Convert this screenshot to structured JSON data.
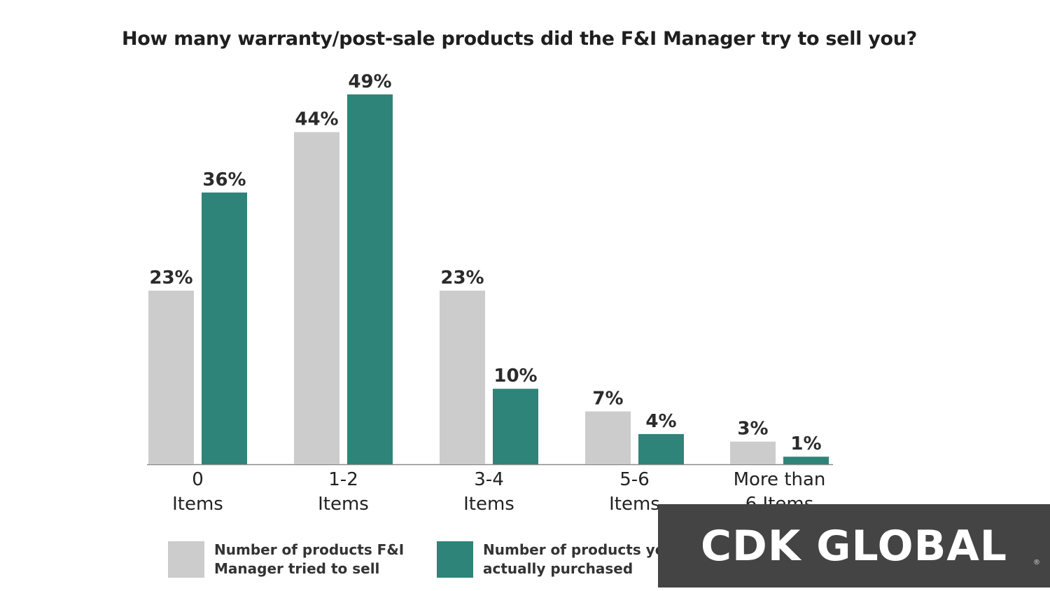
{
  "title": "How many warranty/post-sale products did the F&I Manager try to sell you?",
  "chart_data": {
    "type": "bar",
    "title": "How many warranty/post-sale products did the F&I Manager try to sell you?",
    "categories": [
      "0\nItems",
      "1-2\nItems",
      "3-4\nItems",
      "5-6\nItems",
      "More than\n6 Items"
    ],
    "series": [
      {
        "name": "Number of products F&I Manager tried to sell",
        "values": [
          23,
          44,
          23,
          7,
          3
        ],
        "labels": [
          "23%",
          "44%",
          "23%",
          "7%",
          "3%"
        ],
        "color": "#cccccc"
      },
      {
        "name": "Number of products you actually purchased",
        "values": [
          36,
          49,
          10,
          4,
          1
        ],
        "labels": [
          "36%",
          "49%",
          "10%",
          "4%",
          "1%"
        ],
        "color": "#2e8478"
      }
    ],
    "ylim": [
      0,
      49
    ],
    "grid": false,
    "legend": "bottom"
  },
  "legend": [
    {
      "label": "Number of products F&I Manager tried to sell",
      "color": "#cccccc"
    },
    {
      "label": "Number of products you actually purchased",
      "color": "#2e8478"
    }
  ],
  "logo": {
    "text": "CDK GLOBAL",
    "reg": "®"
  }
}
